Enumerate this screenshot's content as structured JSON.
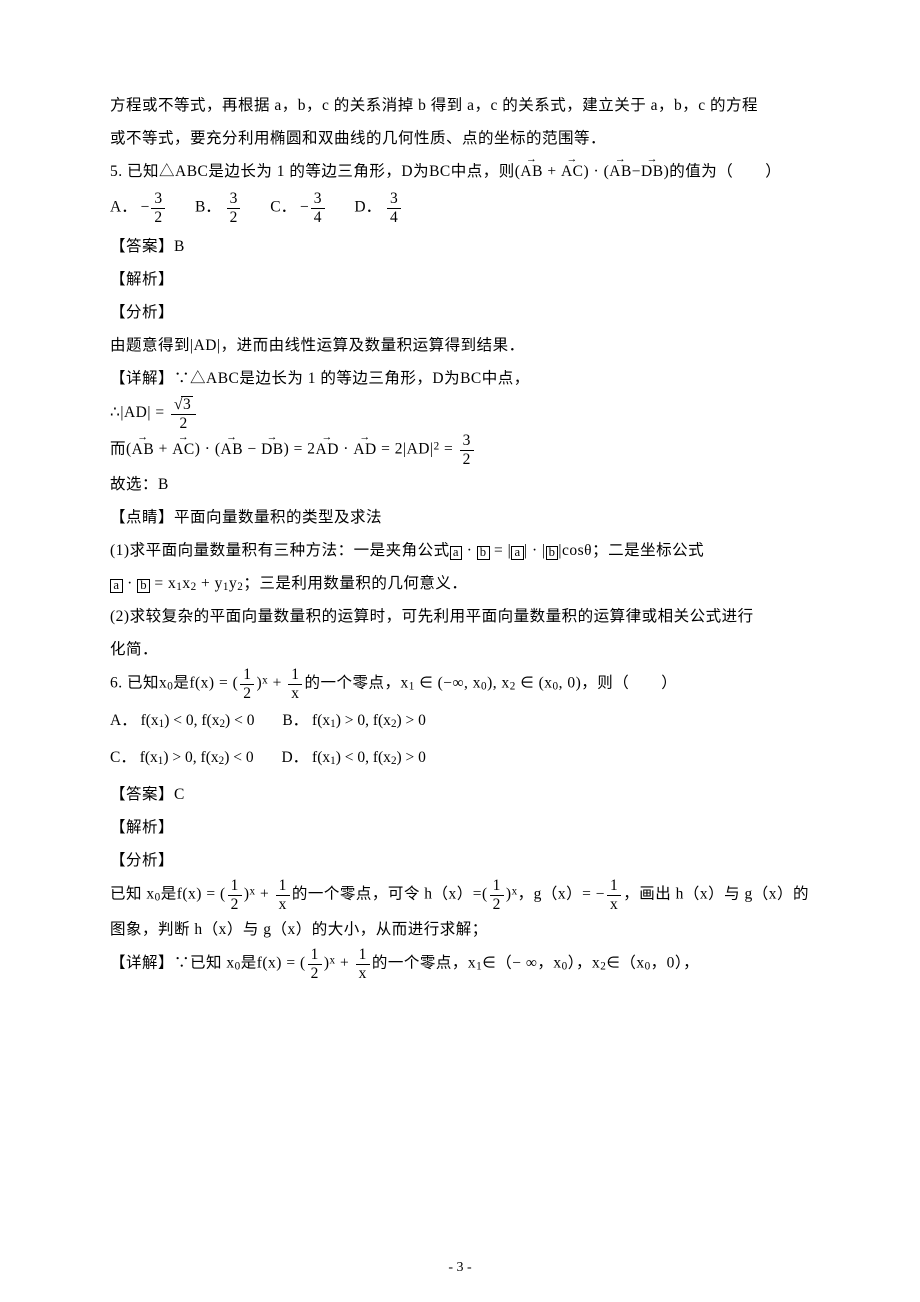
{
  "intro_line1": "方程或不等式，再根据 a，b，c 的关系消掉 b 得到 a，c 的关系式，建立关于 a，b，c 的方程",
  "intro_line2": "或不等式，要充分利用椭圆和双曲线的几何性质、点的坐标的范围等．",
  "q5": {
    "stem_prefix": "5. 已知△ABC是边长为 1 的等边三角形，D为BC中点，则(",
    "stem_vec1a": "AB",
    "stem_plus": " + ",
    "stem_vec1b": "AC",
    "stem_mid": ") · (",
    "stem_vec2a": "AB",
    "stem_minus": "−",
    "stem_vec2b": "DB",
    "stem_suffix": ")的值为（　　）",
    "choice_A_label": "A．",
    "choice_A_sign": "−",
    "choice_A_num": "3",
    "choice_A_den": "2",
    "choice_B_label": "B．",
    "choice_B_num": "3",
    "choice_B_den": "2",
    "choice_C_label": "C．",
    "choice_C_sign": "−",
    "choice_C_num": "3",
    "choice_C_den": "4",
    "choice_D_label": "D．",
    "choice_D_num": "3",
    "choice_D_den": "4",
    "answer_label": "【答案】B",
    "jiexi": "【解析】",
    "fenxi": "【分析】",
    "fenxi_text": "由题意得到|AD|，进而由线性运算及数量积运算得到结果．",
    "detail_label": "【详解】",
    "detail_line1": "∵△ABC是边长为 1 的等边三角形，D为BC中点，",
    "ad_prefix": "∴|AD| = ",
    "ad_num_sqrt": "3",
    "ad_den": "2",
    "expand_prefix": "而(",
    "expand_v1": "AB",
    "expand_plus": " + ",
    "expand_v2": "AC",
    "expand_mid1": ") · (",
    "expand_v3": "AB",
    "expand_minus": " − ",
    "expand_v4": "DB",
    "expand_mid2": ") = 2",
    "expand_v5": "AD",
    "expand_dot": " · ",
    "expand_v6": "AD",
    "expand_eq": " = 2|AD|",
    "expand_sq": "2",
    "expand_eq2": " = ",
    "expand_num": "3",
    "expand_den": "2",
    "gu_xuan": "故选：B",
    "dianjing_label": "【点睛】平面向量数量积的类型及求法",
    "dj1_prefix": "(1)求平面向量数量积有三种方法：一是夹角公式",
    "dj1_a": "a",
    "dj1_dot": " · ",
    "dj1_b": "b",
    "dj1_eq": " = |",
    "dj1_a2": "a",
    "dj1_mid": "| · |",
    "dj1_b2": "b",
    "dj1_end": "|cosθ；二是坐标公式",
    "dj2_a": "a",
    "dj2_dot": " · ",
    "dj2_b": "b",
    "dj2_eq": " = x",
    "dj2_s1": "1",
    "dj2_x2": "x",
    "dj2_s2": "2",
    "dj2_plus": " + y",
    "dj2_s3": "1",
    "dj2_y2": "y",
    "dj2_s4": "2",
    "dj2_end": "；三是利用数量积的几何意义．",
    "dj3": "(2)求较复杂的平面向量数量积的运算时，可先利用平面向量数量积的运算律或相关公式进行",
    "dj3b": "化简．"
  },
  "q6": {
    "stem_prefix": "6. 已知x",
    "stem_sub0": "0",
    "stem_mid1": "是f(x) = (",
    "stem_halfnum": "1",
    "stem_halfden": "2",
    "stem_mid2": ")",
    "stem_exp": "x",
    "stem_plus": " + ",
    "stem_1": "1",
    "stem_x": "x",
    "stem_mid3": "的一个零点，x",
    "stem_sub1": "1",
    "stem_in1": " ∈ (−∞, x",
    "stem_sub0b": "0",
    "stem_in2": "), x",
    "stem_sub2": "2",
    "stem_in3": " ∈ (x",
    "stem_sub0c": "0",
    "stem_in4": ", 0)，则（　　）",
    "A_label": "A．",
    "A_text_p1": "f(x",
    "A_s1": "1",
    "A_text_p2": ") < 0, f(x",
    "A_s2": "2",
    "A_text_p3": ") < 0",
    "B_label": "B．",
    "B_text_p1": "f(x",
    "B_s1": "1",
    "B_text_p2": ") > 0, f(x",
    "B_s2": "2",
    "B_text_p3": ") > 0",
    "C_label": "C．",
    "C_text_p1": "f(x",
    "C_s1": "1",
    "C_text_p2": ") > 0, f(x",
    "C_s2": "2",
    "C_text_p3": ") < 0",
    "D_label": "D．",
    "D_text_p1": "f(x",
    "D_s1": "1",
    "D_text_p2": ") < 0, f(x",
    "D_s2": "2",
    "D_text_p3": ") > 0",
    "answer_label": "【答案】C",
    "jiexi": "【解析】",
    "fenxi": "【分析】",
    "fx_pre": "已知 x",
    "fx_sub0": "0",
    "fx_mid1": "是f(x) = (",
    "fx_hnum": "1",
    "fx_hden": "2",
    "fx_mid2": ")",
    "fx_exp": "x",
    "fx_plus": " + ",
    "fx_1": "1",
    "fx_x": "x",
    "fx_mid3": "的一个零点，可令 h（x）=(",
    "fx_hnum2": "1",
    "fx_hden2": "2",
    "fx_mid4": ")",
    "fx_exp2": "x",
    "fx_comma": "，g（x）= −",
    "fx_g1": "1",
    "fx_gx": "x",
    "fx_mid5": "，画出 h（x）与 g（x）的",
    "fx_line2": "图象，判断 h（x）与 g（x）的大小，从而进行求解；",
    "det_label": "【详解】",
    "det_pre": "∵已知 x",
    "det_sub0": "0",
    "det_mid1": "是f(x) = (",
    "det_hnum": "1",
    "det_hden": "2",
    "det_mid2": ")",
    "det_exp": "x",
    "det_plus": " + ",
    "det_1": "1",
    "det_x": "x",
    "det_mid3": "的一个零点，x",
    "det_s1": "1",
    "det_in1": "∈（− ∞，x",
    "det_s0b": "0",
    "det_in2": "），x",
    "det_s2": "2",
    "det_in3": "∈（x",
    "det_s0c": "0",
    "det_in4": "，0），"
  },
  "pagenum": "- 3 -"
}
